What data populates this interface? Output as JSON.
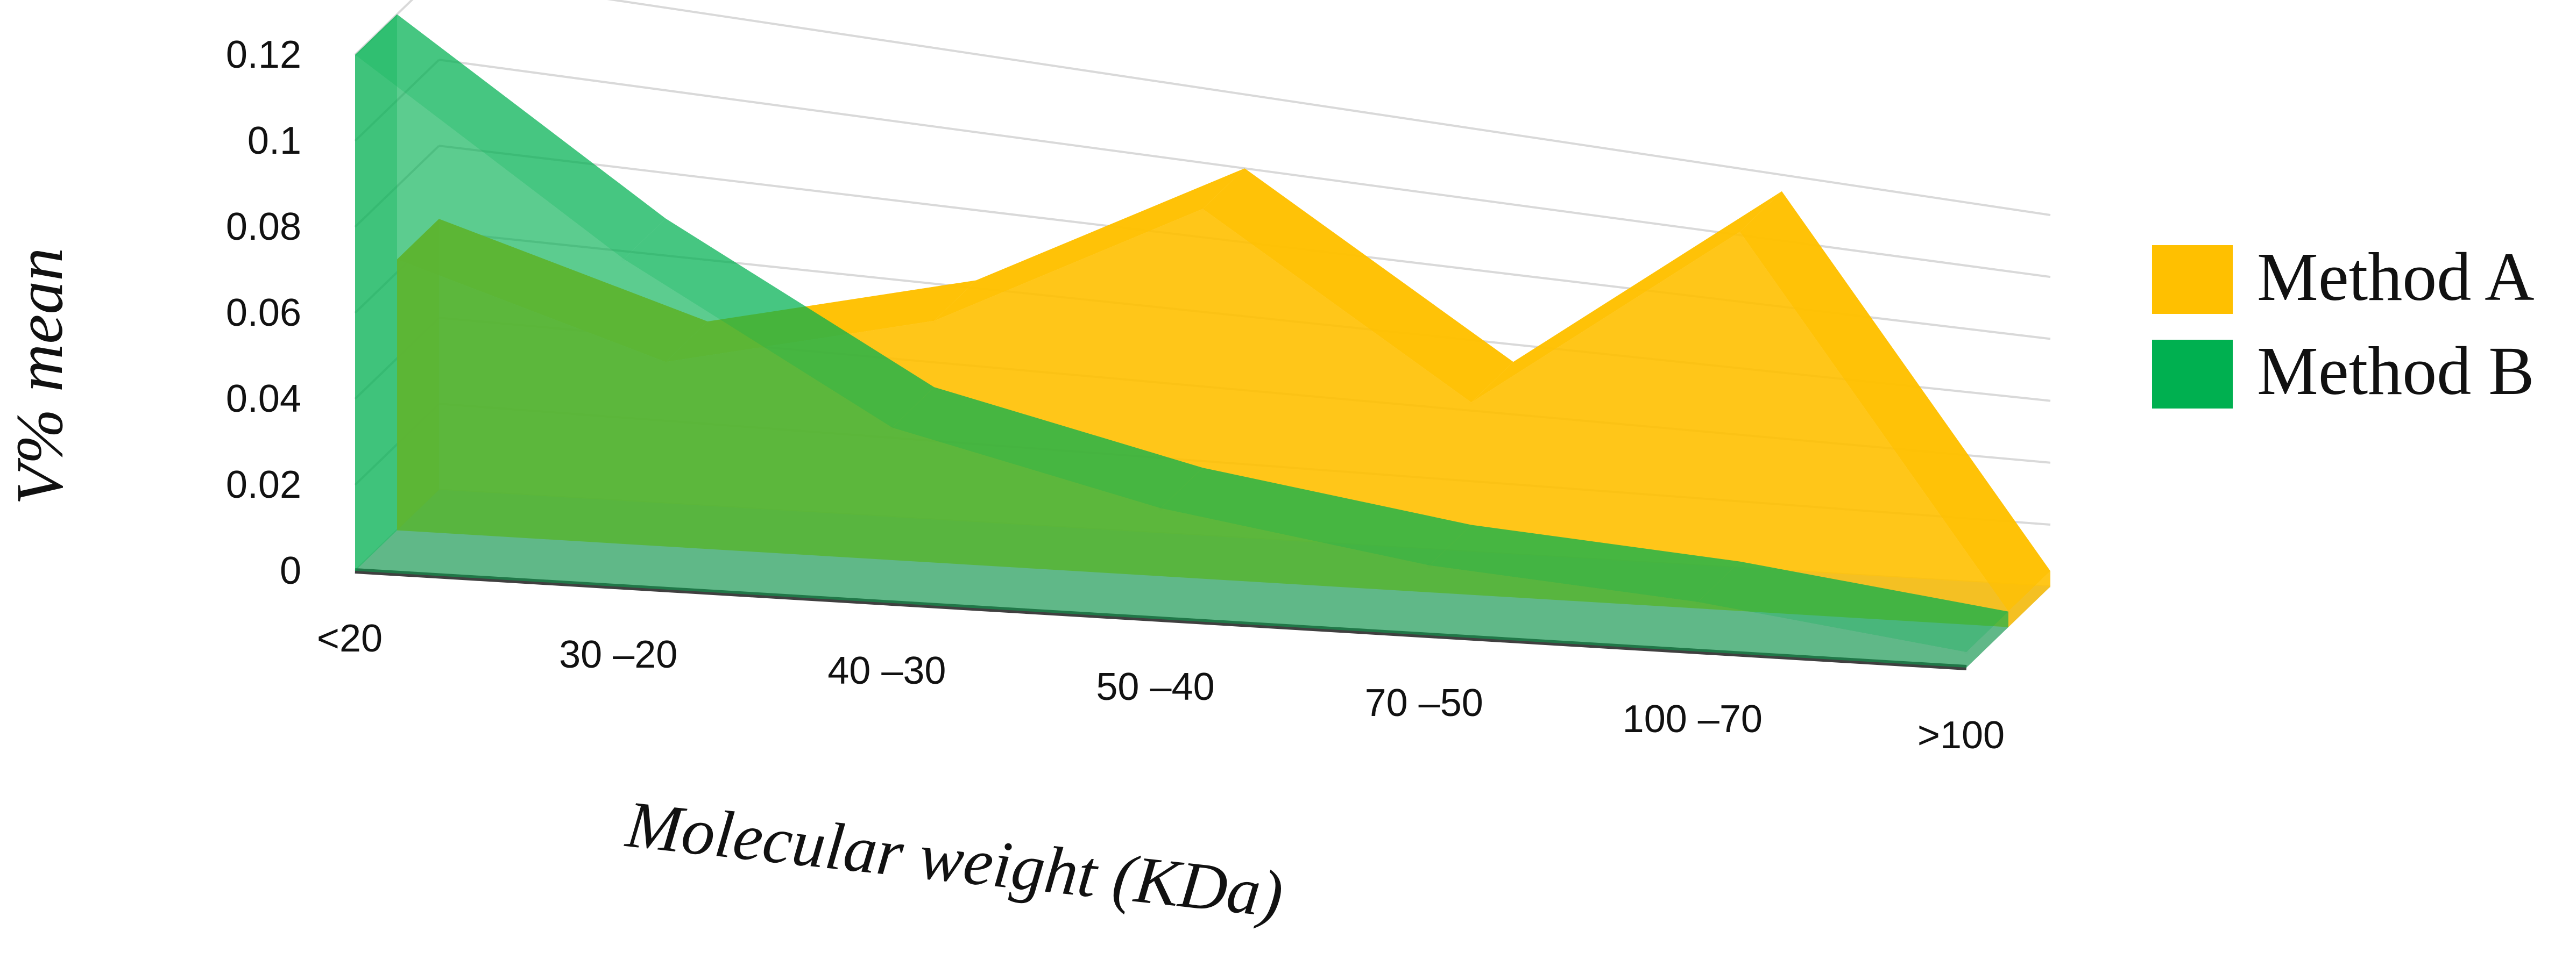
{
  "chart_data": {
    "type": "area",
    "style": "3d",
    "title": "",
    "xlabel": "Molecular weight (KDa)",
    "ylabel": "V% mean",
    "categories": [
      "<20",
      "30 –20",
      "40 –30",
      "50 –40",
      "70 –50",
      "100 –70",
      ">100"
    ],
    "ylim": [
      0,
      0.12
    ],
    "yticks": [
      0,
      0.02,
      0.04,
      0.06,
      0.08,
      0.1,
      0.12
    ],
    "ytick_labels": [
      "0",
      "0.02",
      "0.04",
      "0.06",
      "0.08",
      "0.1",
      "0.12"
    ],
    "grid": true,
    "legend_position": "right",
    "series": [
      {
        "name": "Method A",
        "color": "#FFC000",
        "values": [
          0.063,
          0.045,
          0.062,
          0.1,
          0.055,
          0.115,
          0.005
        ]
      },
      {
        "name": "Method B",
        "color": "#00B050",
        "values": [
          0.12,
          0.08,
          0.045,
          0.03,
          0.02,
          0.015,
          0.005
        ]
      }
    ]
  }
}
